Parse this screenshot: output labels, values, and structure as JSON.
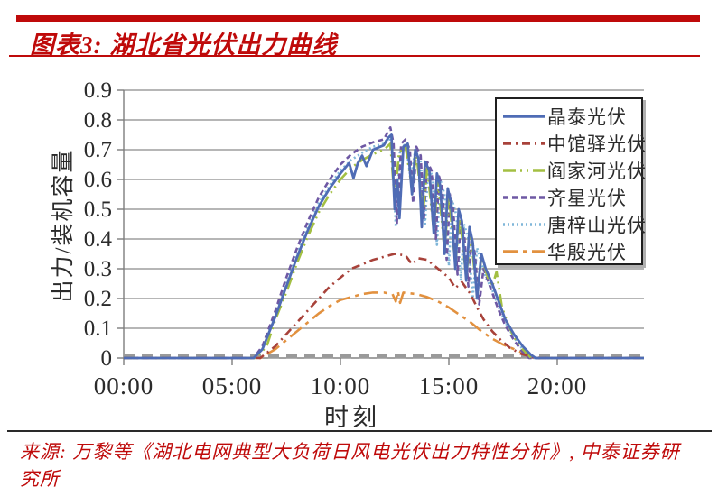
{
  "header": {
    "title": "图表3: 湖北省光伏出力曲线"
  },
  "footer": {
    "source_line1": "来源: 万黎等《湖北电网典型大负荷日风电光伏出力特性分析》, 中泰证券研",
    "source_line2": "究所"
  },
  "colors": {
    "accent_red": "#bf0a0a",
    "grid": "#8a8a8a",
    "axis": "#7d7d7d",
    "baseline": "#9a9a9a",
    "text": "#2b2b2b"
  },
  "chart_data": {
    "type": "line",
    "title": "湖北省光伏出力曲线",
    "xlabel": "时刻",
    "ylabel": "出力/装机容量",
    "xlim": [
      0,
      24
    ],
    "ylim": [
      0,
      0.9
    ],
    "grid": true,
    "legend_position": "top-right",
    "x_ticks": [
      {
        "hour": 0,
        "label": "00:00"
      },
      {
        "hour": 5,
        "label": "05:00"
      },
      {
        "hour": 10,
        "label": "10:00"
      },
      {
        "hour": 15,
        "label": "15:00"
      },
      {
        "hour": 20,
        "label": "20:00"
      }
    ],
    "y_ticks": [
      0,
      0.1,
      0.2,
      0.3,
      0.4,
      0.5,
      0.6,
      0.7,
      0.8,
      0.9
    ],
    "series": [
      {
        "name": "晶泰光伏",
        "color": "#4f6cb5",
        "dash": "",
        "width": 2.8,
        "points": [
          [
            0,
            0
          ],
          [
            6,
            0
          ],
          [
            6.4,
            0.03
          ],
          [
            7,
            0.14
          ],
          [
            7.5,
            0.24
          ],
          [
            8,
            0.34
          ],
          [
            8.5,
            0.43
          ],
          [
            9,
            0.51
          ],
          [
            9.5,
            0.57
          ],
          [
            10,
            0.62
          ],
          [
            10.4,
            0.655
          ],
          [
            10.6,
            0.605
          ],
          [
            10.8,
            0.655
          ],
          [
            11,
            0.68
          ],
          [
            11.2,
            0.645
          ],
          [
            11.5,
            0.7
          ],
          [
            12,
            0.715
          ],
          [
            12.2,
            0.74
          ],
          [
            12.35,
            0.75
          ],
          [
            12.5,
            0.5
          ],
          [
            12.62,
            0.6
          ],
          [
            12.72,
            0.47
          ],
          [
            12.9,
            0.71
          ],
          [
            13.1,
            0.72
          ],
          [
            13.3,
            0.55
          ],
          [
            13.45,
            0.7
          ],
          [
            13.6,
            0.67
          ],
          [
            13.75,
            0.44
          ],
          [
            13.9,
            0.66
          ],
          [
            14.1,
            0.63
          ],
          [
            14.3,
            0.42
          ],
          [
            14.45,
            0.62
          ],
          [
            14.6,
            0.58
          ],
          [
            14.8,
            0.35
          ],
          [
            14.95,
            0.57
          ],
          [
            15.1,
            0.52
          ],
          [
            15.3,
            0.3
          ],
          [
            15.45,
            0.5
          ],
          [
            15.6,
            0.46
          ],
          [
            15.8,
            0.26
          ],
          [
            15.95,
            0.44
          ],
          [
            16.1,
            0.39
          ],
          [
            16.3,
            0.2
          ],
          [
            16.5,
            0.35
          ],
          [
            16.7,
            0.3
          ],
          [
            17,
            0.25
          ],
          [
            17.3,
            0.19
          ],
          [
            17.6,
            0.13
          ],
          [
            18,
            0.08
          ],
          [
            18.4,
            0.04
          ],
          [
            18.8,
            0.01
          ],
          [
            19,
            0
          ],
          [
            24,
            0
          ]
        ]
      },
      {
        "name": "中馆驿光伏",
        "color": "#a8423a",
        "dash": "9 5 2 5",
        "width": 2.6,
        "points": [
          [
            0,
            0
          ],
          [
            6.3,
            0
          ],
          [
            7,
            0.04
          ],
          [
            7.5,
            0.08
          ],
          [
            8,
            0.12
          ],
          [
            8.5,
            0.16
          ],
          [
            9,
            0.2
          ],
          [
            9.5,
            0.24
          ],
          [
            10,
            0.27
          ],
          [
            10.5,
            0.3
          ],
          [
            11,
            0.315
          ],
          [
            11.5,
            0.33
          ],
          [
            12,
            0.34
          ],
          [
            12.5,
            0.35
          ],
          [
            13,
            0.345
          ],
          [
            13.3,
            0.315
          ],
          [
            13.6,
            0.335
          ],
          [
            14,
            0.33
          ],
          [
            14.5,
            0.3
          ],
          [
            15,
            0.27
          ],
          [
            15.3,
            0.235
          ],
          [
            15.6,
            0.255
          ],
          [
            16,
            0.215
          ],
          [
            16.3,
            0.17
          ],
          [
            16.6,
            0.13
          ],
          [
            17,
            0.09
          ],
          [
            17.4,
            0.06
          ],
          [
            17.8,
            0.035
          ],
          [
            18.3,
            0.015
          ],
          [
            19,
            0
          ],
          [
            24,
            0
          ]
        ]
      },
      {
        "name": "阎家河光伏",
        "color": "#a3bf42",
        "dash": "14 5 2 5 2 5",
        "width": 2.6,
        "points": [
          [
            0,
            0
          ],
          [
            6.1,
            0
          ],
          [
            6.6,
            0.04
          ],
          [
            7,
            0.13
          ],
          [
            7.5,
            0.22
          ],
          [
            8,
            0.32
          ],
          [
            8.5,
            0.41
          ],
          [
            9,
            0.49
          ],
          [
            9.5,
            0.55
          ],
          [
            10,
            0.6
          ],
          [
            10.5,
            0.64
          ],
          [
            11,
            0.665
          ],
          [
            11.5,
            0.685
          ],
          [
            12,
            0.7
          ],
          [
            12.3,
            0.72
          ],
          [
            12.5,
            0.53
          ],
          [
            12.7,
            0.69
          ],
          [
            13,
            0.71
          ],
          [
            13.3,
            0.57
          ],
          [
            13.5,
            0.69
          ],
          [
            13.8,
            0.48
          ],
          [
            14,
            0.64
          ],
          [
            14.3,
            0.43
          ],
          [
            14.5,
            0.6
          ],
          [
            14.8,
            0.36
          ],
          [
            15,
            0.55
          ],
          [
            15.3,
            0.31
          ],
          [
            15.5,
            0.48
          ],
          [
            15.8,
            0.27
          ],
          [
            16,
            0.42
          ],
          [
            16.3,
            0.21
          ],
          [
            16.5,
            0.34
          ],
          [
            16.8,
            0.27
          ],
          [
            17,
            0.24
          ],
          [
            17.2,
            0.29
          ],
          [
            17.45,
            0.17
          ],
          [
            17.7,
            0.12
          ],
          [
            18,
            0.07
          ],
          [
            18.4,
            0.03
          ],
          [
            18.8,
            0
          ],
          [
            24,
            0
          ]
        ]
      },
      {
        "name": "齐星光伏",
        "color": "#6e58a4",
        "dash": "6 4",
        "width": 2.6,
        "points": [
          [
            0,
            0
          ],
          [
            6,
            0
          ],
          [
            6.4,
            0.04
          ],
          [
            7,
            0.16
          ],
          [
            7.5,
            0.27
          ],
          [
            8,
            0.37
          ],
          [
            8.5,
            0.46
          ],
          [
            9,
            0.54
          ],
          [
            9.5,
            0.6
          ],
          [
            10,
            0.65
          ],
          [
            10.5,
            0.685
          ],
          [
            11,
            0.71
          ],
          [
            11.5,
            0.725
          ],
          [
            12,
            0.735
          ],
          [
            12.3,
            0.775
          ],
          [
            12.45,
            0.72
          ],
          [
            12.6,
            0.45
          ],
          [
            12.8,
            0.72
          ],
          [
            13,
            0.735
          ],
          [
            13.2,
            0.7
          ],
          [
            13.35,
            0.52
          ],
          [
            13.5,
            0.71
          ],
          [
            13.7,
            0.68
          ],
          [
            13.85,
            0.47
          ],
          [
            14,
            0.66
          ],
          [
            14.2,
            0.63
          ],
          [
            14.4,
            0.4
          ],
          [
            14.55,
            0.61
          ],
          [
            14.7,
            0.57
          ],
          [
            14.9,
            0.33
          ],
          [
            15.05,
            0.55
          ],
          [
            15.2,
            0.5
          ],
          [
            15.4,
            0.28
          ],
          [
            15.55,
            0.47
          ],
          [
            15.7,
            0.42
          ],
          [
            15.9,
            0.24
          ],
          [
            16.05,
            0.4
          ],
          [
            16.2,
            0.35
          ],
          [
            16.4,
            0.18
          ],
          [
            16.6,
            0.3
          ],
          [
            16.8,
            0.26
          ],
          [
            17,
            0.22
          ],
          [
            17.3,
            0.16
          ],
          [
            17.6,
            0.11
          ],
          [
            18,
            0.06
          ],
          [
            18.4,
            0.02
          ],
          [
            18.7,
            0
          ],
          [
            24,
            0
          ]
        ]
      },
      {
        "name": "唐梓山光伏",
        "color": "#7fb6d9",
        "dash": "2 3",
        "width": 2.6,
        "points": [
          [
            0,
            0
          ],
          [
            6,
            0
          ],
          [
            6.4,
            0.03
          ],
          [
            7,
            0.15
          ],
          [
            7.5,
            0.25
          ],
          [
            8,
            0.35
          ],
          [
            8.5,
            0.44
          ],
          [
            9,
            0.52
          ],
          [
            9.5,
            0.58
          ],
          [
            10,
            0.63
          ],
          [
            10.5,
            0.665
          ],
          [
            11,
            0.69
          ],
          [
            11.5,
            0.71
          ],
          [
            12,
            0.72
          ],
          [
            12.25,
            0.745
          ],
          [
            12.4,
            0.68
          ],
          [
            12.55,
            0.44
          ],
          [
            12.75,
            0.7
          ],
          [
            13,
            0.72
          ],
          [
            13.25,
            0.6
          ],
          [
            13.45,
            0.7
          ],
          [
            13.7,
            0.66
          ],
          [
            13.9,
            0.45
          ],
          [
            14.05,
            0.64
          ],
          [
            14.25,
            0.61
          ],
          [
            14.45,
            0.38
          ],
          [
            14.6,
            0.6
          ],
          [
            14.8,
            0.55
          ],
          [
            15,
            0.31
          ],
          [
            15.15,
            0.53
          ],
          [
            15.35,
            0.48
          ],
          [
            15.55,
            0.26
          ],
          [
            15.7,
            0.45
          ],
          [
            15.9,
            0.4
          ],
          [
            16.1,
            0.2
          ],
          [
            16.3,
            0.37
          ],
          [
            16.5,
            0.32
          ],
          [
            16.7,
            0.27
          ],
          [
            17,
            0.23
          ],
          [
            17.3,
            0.17
          ],
          [
            17.6,
            0.12
          ],
          [
            18,
            0.07
          ],
          [
            18.4,
            0.03
          ],
          [
            18.75,
            0
          ],
          [
            24,
            0
          ]
        ]
      },
      {
        "name": "华殷光伏",
        "color": "#e2913f",
        "dash": "16 6 4 6",
        "width": 2.6,
        "points": [
          [
            0,
            0
          ],
          [
            6.3,
            0
          ],
          [
            7,
            0.03
          ],
          [
            7.5,
            0.06
          ],
          [
            8,
            0.09
          ],
          [
            8.5,
            0.12
          ],
          [
            9,
            0.15
          ],
          [
            9.5,
            0.175
          ],
          [
            10,
            0.195
          ],
          [
            10.5,
            0.205
          ],
          [
            11,
            0.215
          ],
          [
            11.5,
            0.22
          ],
          [
            12,
            0.22
          ],
          [
            12.4,
            0.215
          ],
          [
            12.55,
            0.19
          ],
          [
            12.65,
            0.225
          ],
          [
            12.75,
            0.185
          ],
          [
            12.9,
            0.22
          ],
          [
            13.5,
            0.215
          ],
          [
            14,
            0.205
          ],
          [
            14.5,
            0.19
          ],
          [
            15,
            0.17
          ],
          [
            15.5,
            0.145
          ],
          [
            16,
            0.12
          ],
          [
            16.5,
            0.09
          ],
          [
            17,
            0.065
          ],
          [
            17.5,
            0.045
          ],
          [
            18,
            0.03
          ],
          [
            18.5,
            0.015
          ],
          [
            19.2,
            0
          ],
          [
            24,
            0
          ]
        ]
      }
    ]
  }
}
